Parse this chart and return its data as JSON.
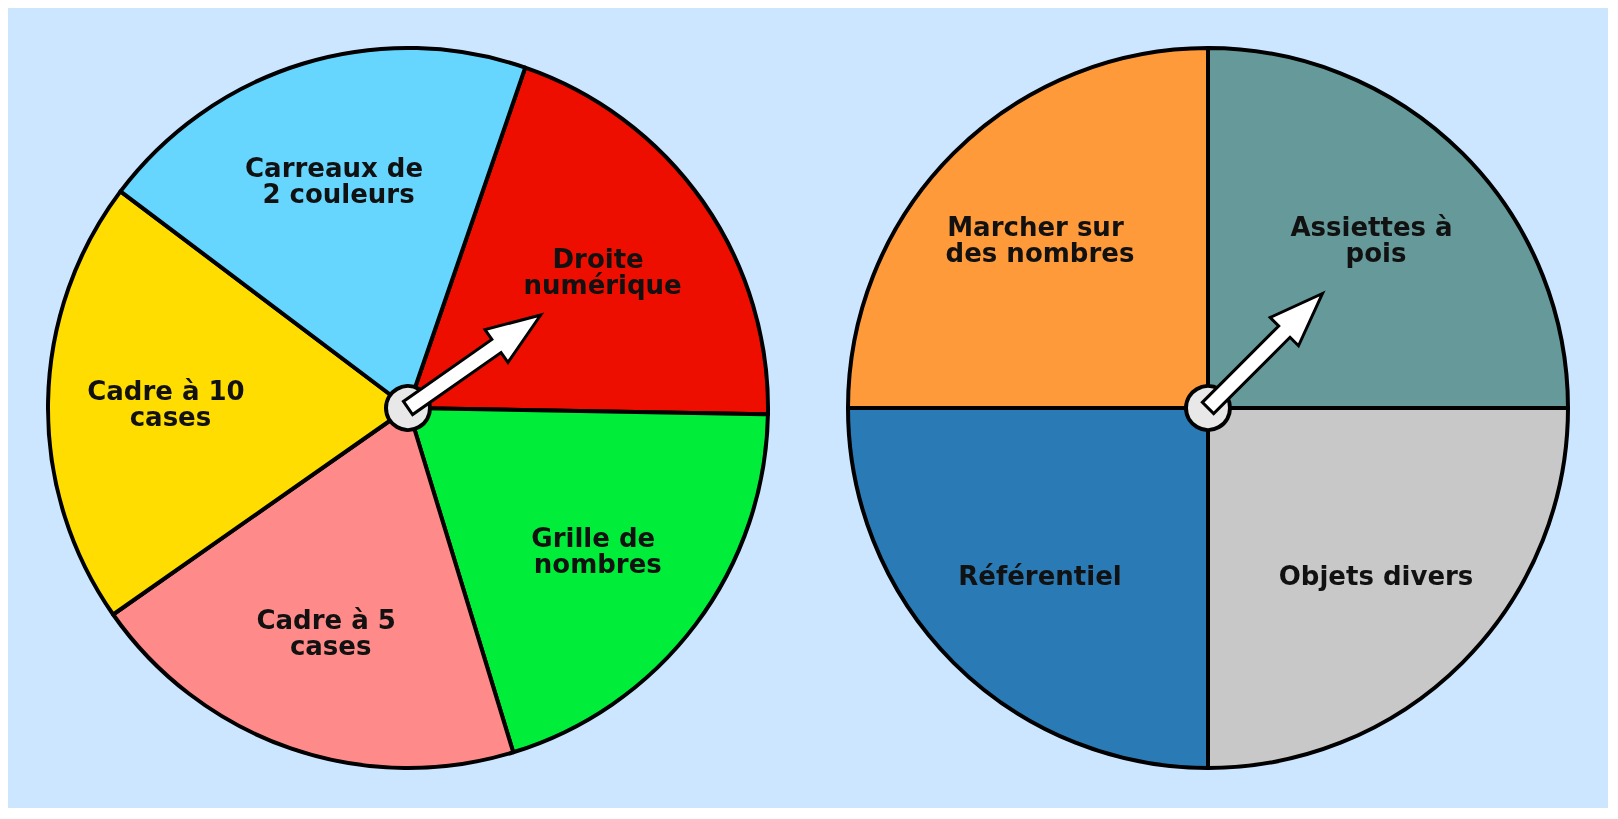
{
  "chart_data": [
    {
      "type": "pie",
      "categories": [
        "Droite numérique",
        "Grille de nombres",
        "Cadre à 5 cases",
        "Cadre à 10 cases",
        "Carreaux de 2 couleurs"
      ],
      "values": [
        20,
        20,
        20,
        20,
        20
      ],
      "colors": [
        "#ee0e00",
        "#00ee3a",
        "#ff8a8a",
        "#ffdd00",
        "#66d6ff"
      ],
      "needle": "Droite numérique"
    },
    {
      "type": "pie",
      "categories": [
        "Assiettes à pois",
        "Objets divers",
        "Référentiel",
        "Marcher sur des nombres"
      ],
      "values": [
        25,
        25,
        25,
        25
      ],
      "colors": [
        "#669999",
        "#c8c8c8",
        "#2a7ab5",
        "#ff9a3a"
      ],
      "needle": "Assiettes à pois"
    }
  ]
}
